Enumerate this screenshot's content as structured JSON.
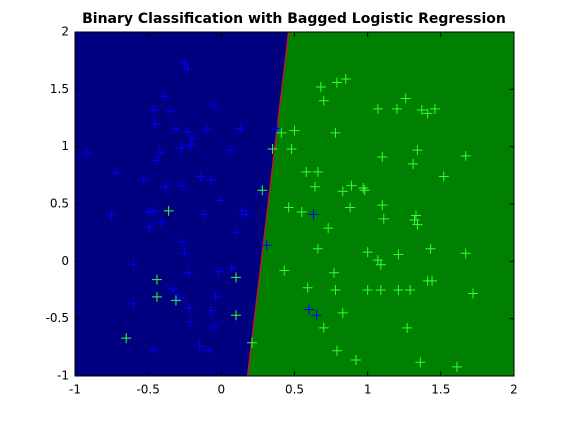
{
  "chart_data": {
    "type": "scatter",
    "title": "Binary Classification with Bagged Logistic Regression",
    "xlim": [
      -1,
      2
    ],
    "ylim": [
      -1,
      2
    ],
    "xticks": [
      -1,
      -0.5,
      0,
      0.5,
      1,
      1.5,
      2
    ],
    "yticks": [
      -1,
      -0.5,
      0,
      0.5,
      1,
      1.5,
      2
    ],
    "regions": {
      "left_color": "#000080",
      "right_color": "#008000"
    },
    "boundary": {
      "x": [
        0.18,
        0.46
      ],
      "y": [
        -1,
        2
      ],
      "color": "#b22222"
    },
    "series": [
      {
        "color": "#0000ff",
        "x": [
          -0.92,
          -0.72,
          -0.75,
          -0.6,
          -0.6,
          -0.46,
          -0.45,
          -0.44,
          -0.42,
          -0.53,
          -0.5,
          -0.49,
          -0.46,
          -0.41,
          -0.46,
          -0.39,
          -0.35,
          -0.31,
          -0.23,
          -0.25,
          -0.23,
          -0.27,
          -0.21,
          -0.2,
          -0.27,
          -0.38,
          -0.14,
          -0.05,
          -0.1,
          -0.07,
          -0.12,
          -0.01,
          -0.27,
          -0.25,
          -0.22,
          -0.29,
          -0.22,
          -0.21,
          -0.33,
          -0.02,
          -0.04,
          -0.07,
          -0.05,
          -0.15,
          -0.09,
          0.13,
          0.06,
          0.14,
          0.17,
          0.1,
          0.07,
          0.31,
          0.38,
          0.63,
          0.6,
          0.65
        ],
        "values": [
          0.94,
          0.77,
          0.41,
          -0.03,
          -0.37,
          1.32,
          1.2,
          0.88,
          0.95,
          0.71,
          0.43,
          0.3,
          0.44,
          0.34,
          -0.78,
          1.44,
          1.31,
          1.16,
          1.13,
          1.73,
          1.68,
          0.99,
          1.01,
          1.07,
          0.66,
          0.65,
          0.74,
          1.36,
          1.15,
          0.71,
          0.41,
          0.53,
          0.17,
          0.07,
          -0.1,
          -0.32,
          -0.41,
          -0.53,
          -0.24,
          -0.09,
          -0.31,
          -0.43,
          -0.57,
          -0.74,
          -0.78,
          1.16,
          0.97,
          0.44,
          0.41,
          0.25,
          -0.06,
          0.14,
          1.16,
          0.41,
          -0.42,
          -0.47
        ]
      },
      {
        "color": "#33ff33",
        "x": [
          -0.65,
          -0.36,
          -0.44,
          -0.44,
          -0.31,
          0.1,
          0.1,
          0.21,
          0.28,
          0.35,
          0.41,
          0.5,
          0.48,
          0.46,
          0.55,
          0.43,
          0.58,
          0.66,
          0.64,
          0.68,
          0.7,
          0.78,
          0.73,
          0.66,
          0.59,
          0.7,
          0.77,
          0.78,
          0.79,
          0.79,
          0.85,
          0.83,
          0.88,
          0.89,
          0.97,
          0.98,
          0.83,
          0.92,
          1.0,
          1.0,
          1.07,
          1.09,
          1.09,
          1.07,
          1.1,
          1.1,
          1.11,
          1.2,
          1.21,
          1.21,
          1.26,
          1.27,
          1.29,
          1.31,
          1.32,
          1.33,
          1.34,
          1.34,
          1.36,
          1.37,
          1.41,
          1.46,
          1.41,
          1.43,
          1.44,
          1.52,
          1.61,
          1.67,
          1.67,
          1.72
        ],
        "values": [
          -0.67,
          0.44,
          -0.16,
          -0.31,
          -0.34,
          -0.14,
          -0.47,
          -0.71,
          0.62,
          0.98,
          1.12,
          1.14,
          0.98,
          0.47,
          0.43,
          -0.08,
          0.78,
          0.78,
          0.65,
          1.52,
          1.4,
          1.12,
          0.29,
          0.11,
          -0.23,
          -0.58,
          -0.1,
          -0.25,
          -0.78,
          1.56,
          1.59,
          0.61,
          0.47,
          0.66,
          0.64,
          0.62,
          -0.45,
          -0.86,
          -0.25,
          0.08,
          0.01,
          -0.03,
          -0.25,
          1.33,
          0.91,
          0.49,
          0.37,
          1.33,
          0.06,
          -0.25,
          1.42,
          -0.58,
          -0.25,
          0.85,
          0.36,
          0.4,
          0.32,
          0.97,
          -0.88,
          1.32,
          1.29,
          1.33,
          -0.17,
          0.11,
          -0.17,
          0.74,
          -0.92,
          0.92,
          0.07,
          -0.28
        ]
      }
    ]
  }
}
